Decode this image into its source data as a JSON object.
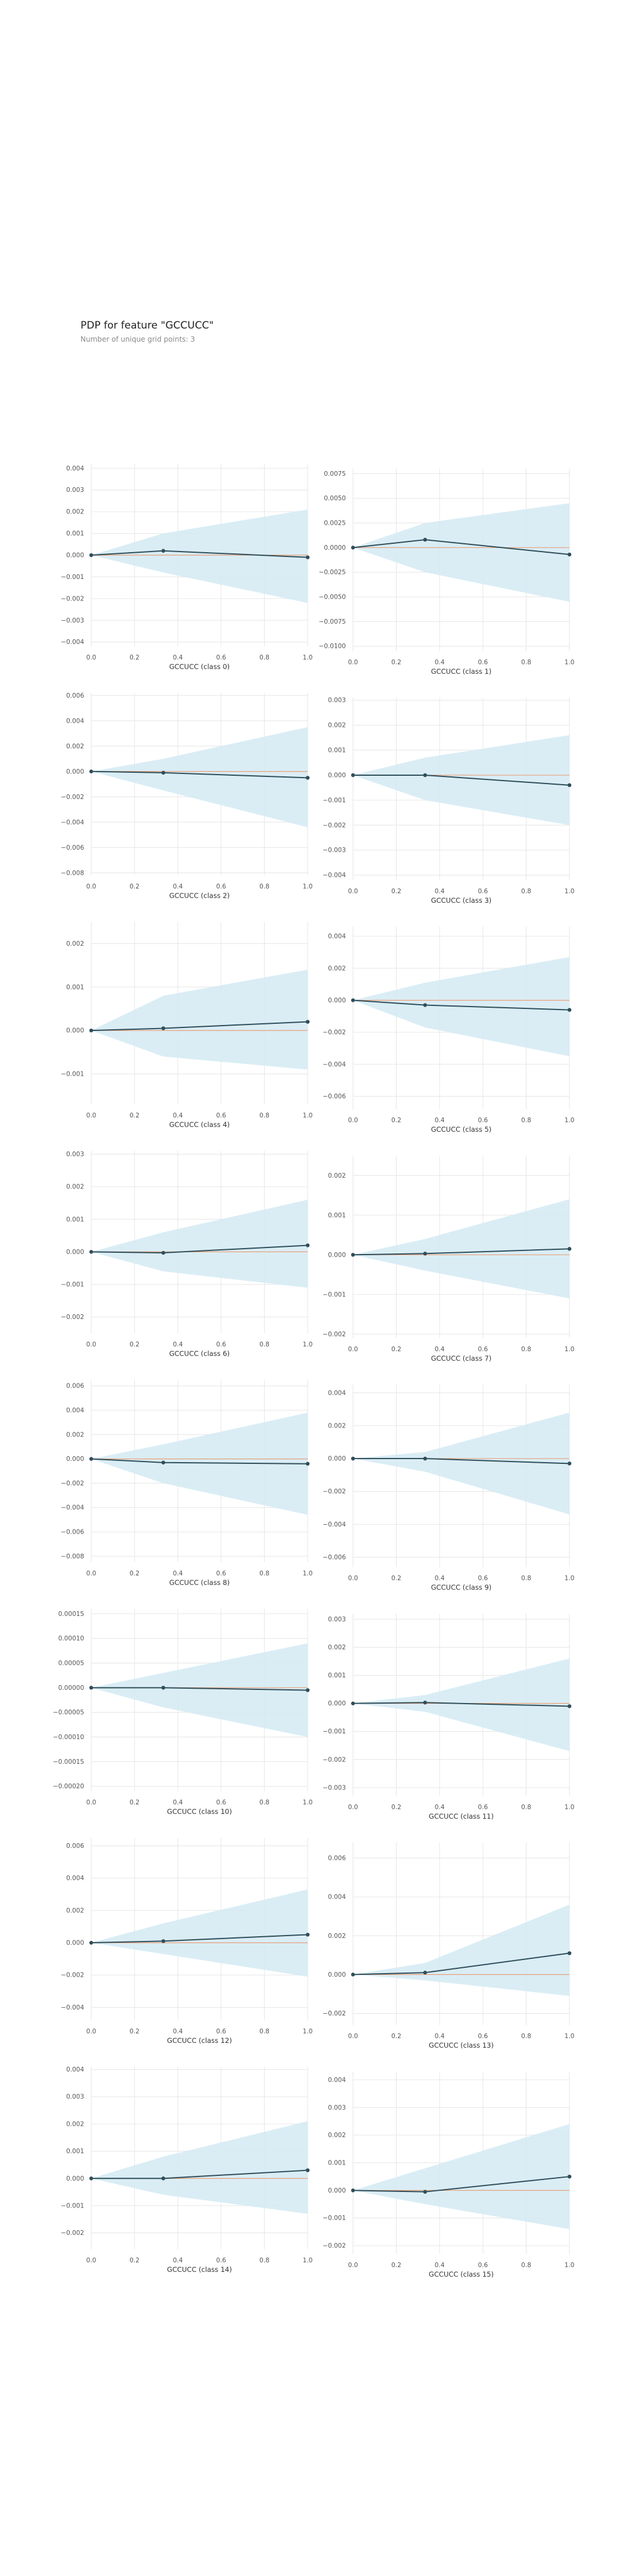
{
  "header": {
    "title": "PDP for feature \"GCCUCC\"",
    "subtitle": "Number of unique grid points: 3"
  },
  "colors": {
    "band": "#d4eaf3",
    "line": "#2f4f5a",
    "baseline": "#e8a07a",
    "grid": "#e6e6e6",
    "tick": "#555555"
  },
  "chart_data": [
    {
      "type": "line",
      "xlabel": "GCCUCC (class 0)",
      "x": [
        0,
        0.333,
        1
      ],
      "y": [
        0,
        0.0002,
        -0.0001
      ],
      "lower": [
        0,
        -0.0008,
        -0.0022
      ],
      "upper": [
        0,
        0.001,
        0.0021
      ],
      "ylim": [
        -0.0042,
        0.0042
      ],
      "yticks": [
        0.004,
        0.003,
        0.002,
        0.001,
        0.0,
        -0.001,
        -0.002,
        -0.003,
        -0.004
      ],
      "ytick_labels": [
        "0.004",
        "0.003",
        "0.002",
        "0.001",
        "0.000",
        "−0.001",
        "−0.002",
        "−0.003",
        "−0.004"
      ],
      "xticks": [
        0,
        0.2,
        0.4,
        0.6,
        0.8,
        1
      ],
      "xtick_labels": [
        "0.0",
        "0.2",
        "0.4",
        "0.6",
        "0.8",
        "1.0"
      ],
      "grid": true
    },
    {
      "type": "line",
      "xlabel": "GCCUCC (class 1)",
      "x": [
        0,
        0.333,
        1
      ],
      "y": [
        0,
        0.0008,
        -0.0007
      ],
      "lower": [
        0,
        -0.0025,
        -0.0055
      ],
      "upper": [
        0,
        0.0025,
        0.0045
      ],
      "ylim": [
        -0.0105,
        0.008
      ],
      "yticks": [
        0.0075,
        0.005,
        0.0025,
        0,
        -0.0025,
        -0.005,
        -0.0075,
        -0.01
      ],
      "ytick_labels": [
        "0.0075",
        "0.0050",
        "0.0025",
        "0.0000",
        "−0.0025",
        "−0.0050",
        "−0.0075",
        "−0.0100"
      ],
      "xticks": [
        0,
        0.2,
        0.4,
        0.6,
        0.8,
        1
      ],
      "xtick_labels": [
        "0.0",
        "0.2",
        "0.4",
        "0.6",
        "0.8",
        "1.0"
      ],
      "grid": true
    },
    {
      "type": "line",
      "xlabel": "GCCUCC (class 2)",
      "x": [
        0,
        0.333,
        1
      ],
      "y": [
        0,
        -0.0001,
        -0.0005
      ],
      "lower": [
        0,
        -0.0015,
        -0.0044
      ],
      "upper": [
        0,
        0.001,
        0.0035
      ],
      "ylim": [
        -0.0082,
        0.0062
      ],
      "yticks": [
        0.006,
        0.004,
        0.002,
        0,
        -0.002,
        -0.004,
        -0.006,
        -0.008
      ],
      "ytick_labels": [
        "0.006",
        "0.004",
        "0.002",
        "0.000",
        "−0.002",
        "−0.004",
        "−0.006",
        "−0.008"
      ],
      "xticks": [
        0,
        0.2,
        0.4,
        0.6,
        0.8,
        1
      ],
      "xtick_labels": [
        "0.0",
        "0.2",
        "0.4",
        "0.6",
        "0.8",
        "1.0"
      ],
      "grid": true
    },
    {
      "type": "line",
      "xlabel": "GCCUCC (class 3)",
      "x": [
        0,
        0.333,
        1
      ],
      "y": [
        0,
        0.0,
        -0.0004
      ],
      "lower": [
        0,
        -0.001,
        -0.002
      ],
      "upper": [
        0,
        0.0007,
        0.0016
      ],
      "ylim": [
        -0.0042,
        0.0031
      ],
      "yticks": [
        0.003,
        0.002,
        0.001,
        0,
        -0.001,
        -0.002,
        -0.003,
        -0.004
      ],
      "ytick_labels": [
        "0.003",
        "0.002",
        "0.001",
        "0.000",
        "−0.001",
        "−0.002",
        "−0.003",
        "−0.004"
      ],
      "xticks": [
        0,
        0.2,
        0.4,
        0.6,
        0.8,
        1
      ],
      "xtick_labels": [
        "0.0",
        "0.2",
        "0.4",
        "0.6",
        "0.8",
        "1.0"
      ],
      "grid": true
    },
    {
      "type": "line",
      "xlabel": "GCCUCC (class 4)",
      "x": [
        0,
        0.333,
        1
      ],
      "y": [
        0,
        5e-05,
        0.0002
      ],
      "lower": [
        0,
        -0.0006,
        -0.0009
      ],
      "upper": [
        0,
        0.0008,
        0.0014
      ],
      "ylim": [
        -0.0017,
        0.0025
      ],
      "yticks": [
        0.002,
        0.001,
        0,
        -0.001
      ],
      "ytick_labels": [
        "0.002",
        "0.001",
        "0.000",
        "−0.001"
      ],
      "xticks": [
        0,
        0.2,
        0.4,
        0.6,
        0.8,
        1
      ],
      "xtick_labels": [
        "0.0",
        "0.2",
        "0.4",
        "0.6",
        "0.8",
        "1.0"
      ],
      "grid": true
    },
    {
      "type": "line",
      "xlabel": "GCCUCC (class 5)",
      "x": [
        0,
        0.333,
        1
      ],
      "y": [
        0,
        -0.0003,
        -0.0006
      ],
      "lower": [
        0,
        -0.0017,
        -0.0035
      ],
      "upper": [
        0,
        0.0011,
        0.0027
      ],
      "ylim": [
        -0.0068,
        0.0046
      ],
      "yticks": [
        0.004,
        0.002,
        0,
        -0.002,
        -0.004,
        -0.006
      ],
      "ytick_labels": [
        "0.004",
        "0.002",
        "0.000",
        "−0.002",
        "−0.004",
        "−0.006"
      ],
      "xticks": [
        0,
        0.2,
        0.4,
        0.6,
        0.8,
        1
      ],
      "xtick_labels": [
        "0.0",
        "0.2",
        "0.4",
        "0.6",
        "0.8",
        "1.0"
      ],
      "grid": true
    },
    {
      "type": "line",
      "xlabel": "GCCUCC (class 6)",
      "x": [
        0,
        0.333,
        1
      ],
      "y": [
        0,
        -3e-05,
        0.0002
      ],
      "lower": [
        0,
        -0.0006,
        -0.0011
      ],
      "upper": [
        0,
        0.0006,
        0.0016
      ],
      "ylim": [
        -0.0025,
        0.0031
      ],
      "yticks": [
        0.003,
        0.002,
        0.001,
        0,
        -0.001,
        -0.002
      ],
      "ytick_labels": [
        "0.003",
        "0.002",
        "0.001",
        "0.000",
        "−0.001",
        "−0.002"
      ],
      "xticks": [
        0,
        0.2,
        0.4,
        0.6,
        0.8,
        1
      ],
      "xtick_labels": [
        "0.0",
        "0.2",
        "0.4",
        "0.6",
        "0.8",
        "1.0"
      ],
      "grid": true
    },
    {
      "type": "line",
      "xlabel": "GCCUCC (class 7)",
      "x": [
        0,
        0.333,
        1
      ],
      "y": [
        0,
        3e-05,
        0.00015
      ],
      "lower": [
        0,
        -0.0004,
        -0.0011
      ],
      "upper": [
        0,
        0.0004,
        0.0014
      ],
      "ylim": [
        -0.0021,
        0.0025
      ],
      "yticks": [
        0.002,
        0.001,
        0,
        -0.001,
        -0.002
      ],
      "ytick_labels": [
        "0.002",
        "0.001",
        "0.000",
        "−0.001",
        "−0.002"
      ],
      "xticks": [
        0,
        0.2,
        0.4,
        0.6,
        0.8,
        1
      ],
      "xtick_labels": [
        "0.0",
        "0.2",
        "0.4",
        "0.6",
        "0.8",
        "1.0"
      ],
      "grid": true
    },
    {
      "type": "line",
      "xlabel": "GCCUCC (class 8)",
      "x": [
        0,
        0.333,
        1
      ],
      "y": [
        0,
        -0.0003,
        -0.0004
      ],
      "lower": [
        0,
        -0.002,
        -0.0046
      ],
      "upper": [
        0,
        0.0012,
        0.0038
      ],
      "ylim": [
        -0.0085,
        0.0065
      ],
      "yticks": [
        0.006,
        0.004,
        0.002,
        0,
        -0.002,
        -0.004,
        -0.006,
        -0.008
      ],
      "ytick_labels": [
        "0.006",
        "0.004",
        "0.002",
        "0.000",
        "−0.002",
        "−0.004",
        "−0.006",
        "−0.008"
      ],
      "xticks": [
        0,
        0.2,
        0.4,
        0.6,
        0.8,
        1
      ],
      "xtick_labels": [
        "0.0",
        "0.2",
        "0.4",
        "0.6",
        "0.8",
        "1.0"
      ],
      "grid": true
    },
    {
      "type": "line",
      "xlabel": "GCCUCC (class 9)",
      "x": [
        0,
        0.333,
        1
      ],
      "y": [
        0,
        0.0,
        -0.0003
      ],
      "lower": [
        0,
        -0.0008,
        -0.0034
      ],
      "upper": [
        0,
        0.0004,
        0.0028
      ],
      "ylim": [
        -0.0066,
        0.0045
      ],
      "yticks": [
        0.004,
        0.002,
        0,
        -0.002,
        -0.004,
        -0.006
      ],
      "ytick_labels": [
        "0.004",
        "0.002",
        "0.000",
        "−0.002",
        "−0.004",
        "−0.006"
      ],
      "xticks": [
        0,
        0.2,
        0.4,
        0.6,
        0.8,
        1
      ],
      "xtick_labels": [
        "0.0",
        "0.2",
        "0.4",
        "0.6",
        "0.8",
        "1.0"
      ],
      "grid": true
    },
    {
      "type": "line",
      "xlabel": "GCCUCC (class 10)",
      "x": [
        0,
        0.333,
        1
      ],
      "y": [
        0,
        0.0,
        -5e-06
      ],
      "lower": [
        0,
        -4e-05,
        -0.0001
      ],
      "upper": [
        0,
        3e-05,
        9e-05
      ],
      "ylim": [
        -0.00021,
        0.00016
      ],
      "yticks": [
        0.00015,
        0.0001,
        5e-05,
        0,
        -5e-05,
        -0.0001,
        -0.00015,
        -0.0002
      ],
      "ytick_labels": [
        "0.00015",
        "0.00010",
        "0.00005",
        "0.00000",
        "−0.00005",
        "−0.00010",
        "−0.00015",
        "−0.00020"
      ],
      "xticks": [
        0,
        0.2,
        0.4,
        0.6,
        0.8,
        1
      ],
      "xtick_labels": [
        "0.0",
        "0.2",
        "0.4",
        "0.6",
        "0.8",
        "1.0"
      ],
      "grid": true
    },
    {
      "type": "line",
      "xlabel": "GCCUCC (class 11)",
      "x": [
        0,
        0.333,
        1
      ],
      "y": [
        0,
        3e-05,
        -0.0001
      ],
      "lower": [
        0,
        -0.0003,
        -0.0017
      ],
      "upper": [
        0,
        0.0003,
        0.0016
      ],
      "ylim": [
        -0.0033,
        0.0032
      ],
      "yticks": [
        0.003,
        0.002,
        0.001,
        0,
        -0.001,
        -0.002,
        -0.003
      ],
      "ytick_labels": [
        "0.003",
        "0.002",
        "0.001",
        "0.000",
        "−0.001",
        "−0.002",
        "−0.003"
      ],
      "xticks": [
        0,
        0.2,
        0.4,
        0.6,
        0.8,
        1
      ],
      "xtick_labels": [
        "0.0",
        "0.2",
        "0.4",
        "0.6",
        "0.8",
        "1.0"
      ],
      "grid": true
    },
    {
      "type": "line",
      "xlabel": "GCCUCC (class 12)",
      "x": [
        0,
        0.333,
        1
      ],
      "y": [
        0,
        0.0001,
        0.0005
      ],
      "lower": [
        0,
        -0.0007,
        -0.0021
      ],
      "upper": [
        0,
        0.0012,
        0.0033
      ],
      "ylim": [
        -0.0048,
        0.0065
      ],
      "yticks": [
        0.006,
        0.004,
        0.002,
        0,
        -0.002,
        -0.004
      ],
      "ytick_labels": [
        "0.006",
        "0.004",
        "0.002",
        "0.000",
        "−0.002",
        "−0.004"
      ],
      "xticks": [
        0,
        0.2,
        0.4,
        0.6,
        0.8,
        1
      ],
      "xtick_labels": [
        "0.0",
        "0.2",
        "0.4",
        "0.6",
        "0.8",
        "1.0"
      ],
      "grid": true
    },
    {
      "type": "line",
      "xlabel": "GCCUCC (class 13)",
      "x": [
        0,
        0.333,
        1
      ],
      "y": [
        0,
        0.0001,
        0.0011
      ],
      "lower": [
        0,
        -0.0003,
        -0.0011
      ],
      "upper": [
        0,
        0.0006,
        0.0036
      ],
      "ylim": [
        -0.0026,
        0.0068
      ],
      "yticks": [
        0.006,
        0.004,
        0.002,
        0,
        -0.002
      ],
      "ytick_labels": [
        "0.006",
        "0.004",
        "0.002",
        "0.000",
        "−0.002"
      ],
      "xticks": [
        0,
        0.2,
        0.4,
        0.6,
        0.8,
        1
      ],
      "xtick_labels": [
        "0.0",
        "0.2",
        "0.4",
        "0.6",
        "0.8",
        "1.0"
      ],
      "grid": true
    },
    {
      "type": "line",
      "xlabel": "GCCUCC (class 14)",
      "x": [
        0,
        0.333,
        1
      ],
      "y": [
        0,
        0.0,
        0.0003
      ],
      "lower": [
        0,
        -0.0006,
        -0.0013
      ],
      "upper": [
        0,
        0.0008,
        0.0021
      ],
      "ylim": [
        -0.0026,
        0.0041
      ],
      "yticks": [
        0.004,
        0.003,
        0.002,
        0.001,
        0,
        -0.001,
        -0.002
      ],
      "ytick_labels": [
        "0.004",
        "0.003",
        "0.002",
        "0.001",
        "0.000",
        "−0.001",
        "−0.002"
      ],
      "xticks": [
        0,
        0.2,
        0.4,
        0.6,
        0.8,
        1
      ],
      "xtick_labels": [
        "0.0",
        "0.2",
        "0.4",
        "0.6",
        "0.8",
        "1.0"
      ],
      "grid": true
    },
    {
      "type": "line",
      "xlabel": "GCCUCC (class 15)",
      "x": [
        0,
        0.333,
        1
      ],
      "y": [
        0,
        -5e-05,
        0.0005
      ],
      "lower": [
        0,
        -0.0005,
        -0.0014
      ],
      "upper": [
        0,
        0.0008,
        0.0024
      ],
      "ylim": [
        -0.0023,
        0.0043
      ],
      "yticks": [
        0.004,
        0.003,
        0.002,
        0.001,
        0,
        -0.001,
        -0.002
      ],
      "ytick_labels": [
        "0.004",
        "0.003",
        "0.002",
        "0.001",
        "0.000",
        "−0.001",
        "−0.002"
      ],
      "xticks": [
        0,
        0.2,
        0.4,
        0.6,
        0.8,
        1
      ],
      "xtick_labels": [
        "0.0",
        "0.2",
        "0.4",
        "0.6",
        "0.8",
        "1.0"
      ],
      "grid": true
    }
  ]
}
